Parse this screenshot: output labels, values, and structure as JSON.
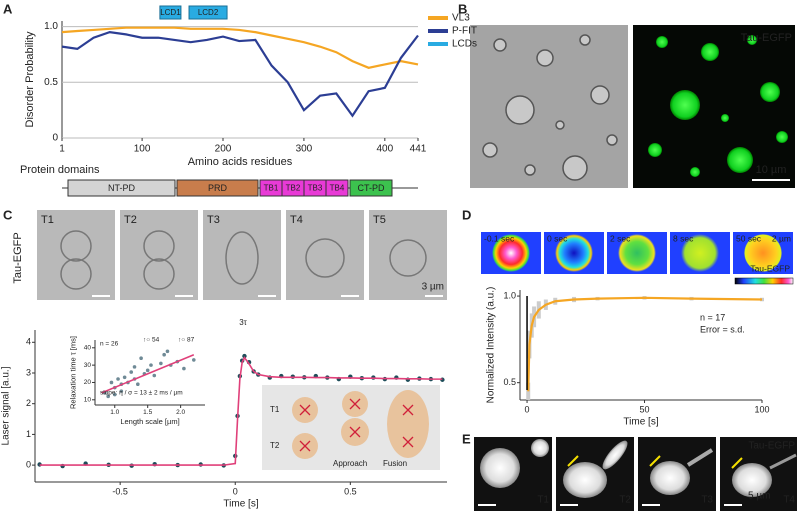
{
  "panel_labels": [
    "A",
    "B",
    "C",
    "D",
    "E"
  ],
  "chart_data": [
    {
      "type": "line",
      "xlabel": "Amino acids residues",
      "ylabel": "Disorder Probability",
      "x": [
        1,
        20,
        40,
        60,
        80,
        100,
        120,
        140,
        160,
        180,
        200,
        220,
        240,
        260,
        280,
        300,
        320,
        340,
        360,
        380,
        400,
        420,
        441
      ],
      "series": [
        {
          "name": "VL3",
          "color": "#f5a623",
          "values": [
            0.95,
            0.96,
            0.97,
            0.98,
            0.99,
            0.99,
            0.99,
            0.99,
            0.98,
            0.98,
            0.98,
            0.97,
            0.95,
            0.92,
            0.89,
            0.86,
            0.82,
            0.77,
            0.69,
            0.63,
            0.66,
            0.69,
            0.66
          ]
        },
        {
          "name": "P-FIT",
          "color": "#2c3e94",
          "values": [
            0.82,
            0.8,
            0.9,
            0.95,
            0.93,
            0.9,
            0.9,
            0.88,
            0.86,
            0.88,
            0.91,
            0.87,
            0.88,
            0.65,
            0.5,
            0.25,
            0.38,
            0.4,
            0.2,
            0.42,
            0.45,
            0.72,
            0.92
          ]
        }
      ],
      "regions": {
        "name": "LCDs",
        "color": "#29abe2",
        "items": [
          {
            "label": "LCD1",
            "start": 122,
            "end": 148
          },
          {
            "label": "LCD2",
            "start": 158,
            "end": 205
          }
        ]
      },
      "xlim": [
        1,
        441
      ],
      "xticks": [
        1,
        100,
        200,
        300,
        400,
        441
      ],
      "ylim": [
        0,
        1.05
      ],
      "yticks": [
        0,
        0.5,
        {
          "value": 1,
          "label": "1.0"
        }
      ],
      "grid": true,
      "legend": "upper right"
    },
    {
      "type": "scatter",
      "xlabel": "Time [s]",
      "ylabel": "Laser signal [a.u.]",
      "annotations": [
        "3τ"
      ],
      "x": [
        -0.85,
        -0.75,
        -0.65,
        -0.55,
        -0.45,
        -0.35,
        -0.25,
        -0.15,
        -0.05,
        0,
        0.01,
        0.02,
        0.03,
        0.04,
        0.06,
        0.08,
        0.1,
        0.15,
        0.2,
        0.25,
        0.3,
        0.35,
        0.4,
        0.45,
        0.5,
        0.55,
        0.6,
        0.65,
        0.7,
        0.75,
        0.8,
        0.85,
        0.9
      ],
      "series": [
        {
          "color": "#1f4e5a",
          "values": [
            0.02,
            -0.03,
            0.05,
            0.01,
            -0.02,
            0.03,
            0,
            0.02,
            -0.01,
            0.3,
            1.6,
            2.9,
            3.4,
            3.55,
            3.35,
            3.05,
            2.95,
            2.85,
            2.9,
            2.88,
            2.86,
            2.9,
            2.85,
            2.8,
            2.88,
            2.83,
            2.85,
            2.8,
            2.85,
            2.78,
            2.82,
            2.8,
            2.78
          ]
        }
      ],
      "fit": {
        "color": "#e0407a",
        "values": [
          0,
          0,
          0,
          0,
          0,
          0,
          0,
          0,
          0,
          0.05,
          1.5,
          2.8,
          3.35,
          3.5,
          3.3,
          3.05,
          2.95,
          2.88,
          2.86,
          2.86,
          2.86,
          2.85,
          2.85,
          2.84,
          2.84,
          2.83,
          2.83,
          2.82,
          2.82,
          2.81,
          2.81,
          2.8,
          2.8
        ]
      },
      "xlim": [
        -0.87,
        0.92
      ],
      "xticks": [
        -0.5,
        0,
        0.5
      ],
      "ylim": [
        -0.55,
        4.4
      ],
      "yticks": [
        0,
        1,
        2,
        3,
        4
      ]
    },
    {
      "type": "scatter",
      "xlabel": "Length scale [µm]",
      "ylabel": "Relaxation time τ [ms]",
      "annotations": [
        "n = 26",
        "↑○ 54",
        "↑○ 87",
        "slope: η / σ = 13 ± 2 ms / µm"
      ],
      "x": [
        0.85,
        0.9,
        0.95,
        1.0,
        1.0,
        1.05,
        1.1,
        1.1,
        1.15,
        1.2,
        1.25,
        1.3,
        1.3,
        1.35,
        1.4,
        1.45,
        1.5,
        1.55,
        1.6,
        1.7,
        1.75,
        1.8,
        1.85,
        1.95,
        2.05,
        2.2
      ],
      "series": [
        {
          "color": "#6f8a96",
          "values": [
            14,
            12,
            20,
            17,
            13,
            22,
            19,
            15,
            23,
            20,
            26,
            22,
            29,
            19,
            34,
            25,
            27,
            30,
            24,
            31,
            36,
            38,
            30,
            32,
            28,
            33
          ]
        }
      ],
      "fit": {
        "color": "#e0407a",
        "x": [
          0.8,
          2.2
        ],
        "values": [
          14,
          36
        ]
      },
      "xlim": [
        0.7,
        2.37
      ],
      "xticks": [
        {
          "value": 1,
          "label": "1.0"
        },
        1.5,
        {
          "value": 2,
          "label": "2.0"
        }
      ],
      "ylim": [
        7,
        44.5
      ],
      "yticks": [
        10,
        20,
        30,
        40
      ]
    },
    {
      "type": "line",
      "xlabel": "Time [s]",
      "ylabel": "Normalized Intensity (a.u.)",
      "annotations": [
        "n = 17",
        "Error = s.d."
      ],
      "x": [
        0.5,
        1,
        2,
        3,
        5,
        8,
        12,
        20,
        30,
        50,
        70,
        100
      ],
      "series": [
        {
          "color": "#f5a623",
          "values": [
            0.45,
            0.72,
            0.83,
            0.88,
            0.92,
            0.95,
            0.97,
            0.98,
            0.985,
            0.99,
            0.985,
            0.98
          ],
          "errors": [
            0.05,
            0.08,
            0.07,
            0.06,
            0.05,
            0.03,
            0.02,
            0.015,
            0.01,
            0.01,
            0.01,
            0.01
          ]
        }
      ],
      "xlim": [
        -3,
        100
      ],
      "xticks": [
        0,
        50,
        100
      ],
      "ylim": [
        0.4,
        1.035
      ],
      "yticks": [
        0.5,
        {
          "value": 1,
          "label": "1.0"
        }
      ]
    }
  ],
  "protein_domains": {
    "title": "Protein domains",
    "domains": [
      {
        "label": "NT-PD",
        "color": "#d4d4d4"
      },
      {
        "label": "PRD",
        "color": "#c87d4c"
      },
      {
        "label": "TB1",
        "color": "#e83ad6"
      },
      {
        "label": "TB2",
        "color": "#e83ad6"
      },
      {
        "label": "TB3",
        "color": "#e83ad6"
      },
      {
        "label": "TB4",
        "color": "#e83ad6"
      },
      {
        "label": "CT-PD",
        "color": "#3cc24e"
      }
    ]
  },
  "images": {
    "B": {
      "label": "Tau-EGFP",
      "scale": "10 µm"
    },
    "C": {
      "label": "Tau-EGFP",
      "frames": [
        "T1",
        "T2",
        "T3",
        "T4",
        "T5"
      ],
      "scale": "3 µm"
    },
    "D": {
      "label": "Tau-EGFP",
      "frames": [
        "-0.1 sec",
        "0 sec",
        "2 sec",
        "8 sec",
        "50 sec"
      ],
      "scale": "2 µm"
    },
    "E": {
      "label": "Tau-EGFP",
      "frames": [
        "T1",
        "T2",
        "T3",
        "T4"
      ],
      "scale": "5 µm"
    }
  },
  "schematic": {
    "rows": [
      "T1",
      "T2"
    ],
    "steps": [
      "Approach",
      "Fusion"
    ]
  }
}
